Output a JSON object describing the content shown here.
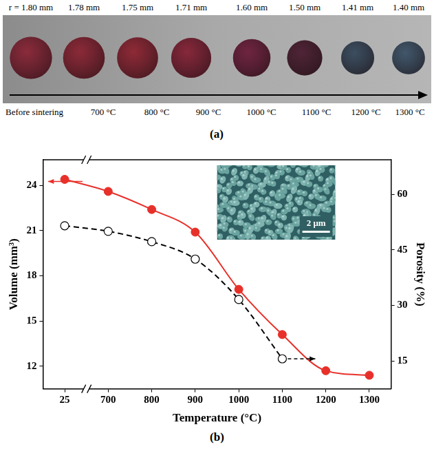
{
  "panel_a": {
    "label": "(a)",
    "radii_mm": [
      1.8,
      1.78,
      1.75,
      1.71,
      1.6,
      1.5,
      1.41,
      1.4
    ],
    "radius_labels": [
      "r = 1.80 mm",
      "1.78 mm",
      "1.75 mm",
      "1.71 mm",
      "1.60 mm",
      "1.50 mm",
      "1.41 mm",
      "1.40 mm"
    ],
    "temperatures": [
      "Before sintering",
      "700 °C",
      "800 °C",
      "900 °C",
      "1000 °C",
      "1100 °C",
      "1200 °C",
      "1300 °C"
    ],
    "colors": [
      "#8a2b3b",
      "#8b2a38",
      "#8e2a37",
      "#86283b",
      "#6f2540",
      "#4f2436",
      "#3c4e60",
      "#41576b"
    ]
  },
  "chart_data": {
    "type": "line",
    "label": "(b)",
    "x_label": "Temperature (°C)",
    "y_label": "Volume (mm³)",
    "y2_label": "Porosity (%)",
    "categories": [
      25,
      700,
      800,
      900,
      1000,
      1100,
      1200,
      1300
    ],
    "ylim": [
      10.5,
      25.7
    ],
    "yticks": [
      12,
      15,
      18,
      21,
      24
    ],
    "y2lim": [
      7.5,
      69.3
    ],
    "y2ticks": [
      15,
      30,
      45,
      60
    ],
    "grid": false,
    "series": [
      {
        "color": "#e8302a",
        "marker": "filled circle",
        "line_style": "solid",
        "values": [
          24.4,
          23.6,
          22.4,
          20.9,
          17.1,
          14.1,
          11.7,
          11.4
        ]
      },
      {
        "color": "#000000",
        "marker": "open circle",
        "line_style": "dashed",
        "axis": "y2",
        "values": [
          51.5,
          50,
          47.2,
          42.5,
          31.6,
          15.6,
          null,
          null
        ]
      }
    ],
    "inset": {
      "scale_bar": "2 μm"
    }
  }
}
